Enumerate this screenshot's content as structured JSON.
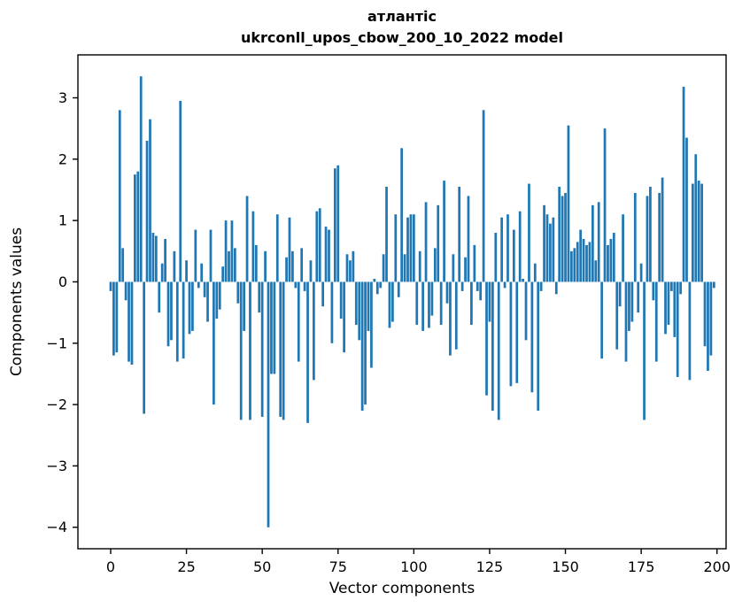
{
  "figure": {
    "title_line1": "атлантіс",
    "title_line2": "ukrconll_upos_cbow_200_10_2022 model",
    "xlabel": "Vector components",
    "ylabel": "Components values"
  },
  "chart_data": {
    "type": "bar",
    "title": "атлантіс",
    "subtitle": "ukrconll_upos_cbow_200_10_2022 model",
    "xlabel": "Vector components",
    "ylabel": "Components values",
    "bar_color": "#1f77b4",
    "grid": false,
    "legend": "none",
    "xlim": [
      -10.8,
      203
    ],
    "ylim": [
      -4.35,
      3.7
    ],
    "xticks": [
      0,
      25,
      50,
      75,
      100,
      125,
      150,
      175,
      200
    ],
    "yticks": [
      -4,
      -3,
      -2,
      -1,
      0,
      1,
      2,
      3
    ],
    "x_start": 0,
    "x_end": 199,
    "values": [
      -0.15,
      -1.2,
      -1.15,
      2.8,
      0.55,
      -0.3,
      -1.3,
      -1.35,
      1.75,
      1.8,
      3.35,
      -2.15,
      2.3,
      2.65,
      0.8,
      0.75,
      -0.5,
      0.3,
      0.7,
      -1.05,
      -0.95,
      0.5,
      -1.3,
      2.95,
      -1.25,
      0.35,
      -0.85,
      -0.8,
      0.85,
      -0.1,
      0.3,
      -0.25,
      -0.65,
      0.85,
      -2.0,
      -0.6,
      -0.45,
      0.25,
      1.0,
      0.5,
      1.0,
      0.55,
      -0.35,
      -2.25,
      -0.8,
      1.4,
      -2.25,
      1.15,
      0.6,
      -0.5,
      -2.2,
      0.5,
      -4.0,
      -1.5,
      -1.5,
      1.1,
      -2.2,
      -2.25,
      0.4,
      1.05,
      0.5,
      -0.1,
      -1.3,
      0.55,
      -0.15,
      -2.3,
      0.35,
      -1.6,
      1.15,
      1.2,
      -0.4,
      0.9,
      0.85,
      -1.0,
      1.85,
      1.9,
      -0.6,
      -1.15,
      0.45,
      0.35,
      0.5,
      -0.7,
      -0.95,
      -2.1,
      -2.0,
      -0.8,
      -1.4,
      0.05,
      -0.2,
      -0.1,
      0.45,
      1.55,
      -0.75,
      -0.65,
      1.1,
      -0.25,
      2.18,
      0.45,
      1.05,
      1.1,
      1.1,
      -0.7,
      0.5,
      -0.8,
      1.3,
      -0.75,
      -0.55,
      0.55,
      1.25,
      -0.7,
      1.65,
      -0.35,
      -1.2,
      0.45,
      -1.1,
      1.55,
      -0.15,
      0.4,
      1.4,
      -0.7,
      0.6,
      -0.15,
      -0.3,
      2.8,
      -1.85,
      -0.65,
      -2.1,
      0.8,
      -2.25,
      1.05,
      -0.1,
      1.1,
      -1.7,
      0.85,
      -1.65,
      1.15,
      0.05,
      -0.95,
      1.6,
      -1.8,
      0.3,
      -2.1,
      -0.15,
      1.25,
      1.1,
      0.95,
      1.05,
      -0.2,
      1.55,
      1.4,
      1.45,
      2.55,
      0.5,
      0.55,
      0.65,
      0.85,
      0.7,
      0.6,
      0.65,
      1.25,
      0.35,
      1.3,
      -1.25,
      2.5,
      0.6,
      0.7,
      0.8,
      -1.1,
      -0.4,
      1.1,
      -1.3,
      -0.8,
      -0.65,
      1.45,
      -0.5,
      0.3,
      -2.25,
      1.4,
      1.55,
      -0.3,
      -1.3,
      1.45,
      1.7,
      -0.85,
      -0.7,
      -0.15,
      -0.9,
      -1.55,
      -0.2,
      3.18,
      2.35,
      -1.6,
      1.6,
      2.08,
      1.65,
      1.6,
      -1.05,
      -1.45,
      -1.2,
      -0.1
    ]
  }
}
